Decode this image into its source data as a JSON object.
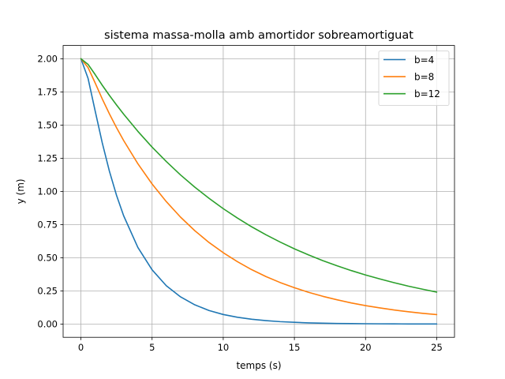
{
  "chart_data": {
    "type": "line",
    "title": "sistema massa-molla amb amortidor sobreamortiguat",
    "xlabel": "temps (s)",
    "ylabel": "y (m)",
    "xlim": [
      -1.25,
      26.25
    ],
    "ylim": [
      -0.1,
      2.1
    ],
    "xticks": [
      0,
      5,
      10,
      15,
      20,
      25
    ],
    "xtick_labels": [
      "0",
      "5",
      "10",
      "15",
      "20",
      "25"
    ],
    "yticks": [
      0,
      0.25,
      0.5,
      0.75,
      1.0,
      1.25,
      1.5,
      1.75,
      2.0
    ],
    "ytick_labels": [
      "0.00",
      "0.25",
      "0.50",
      "0.75",
      "1.00",
      "1.25",
      "1.50",
      "1.75",
      "2.00"
    ],
    "grid": true,
    "legend_position": "top-right",
    "x": [
      0,
      0.5,
      1,
      1.5,
      2,
      2.5,
      3,
      4,
      5,
      6,
      7,
      8,
      9,
      10,
      11,
      12,
      13,
      14,
      15,
      16,
      17,
      18,
      19,
      20,
      21,
      22,
      23,
      24,
      25
    ],
    "series": [
      {
        "name": "b=4",
        "color": "#1f77b4",
        "values": [
          2.0,
          1.853,
          1.607,
          1.366,
          1.153,
          0.971,
          0.817,
          0.578,
          0.409,
          0.289,
          0.205,
          0.145,
          0.102,
          0.072,
          0.051,
          0.036,
          0.026,
          0.018,
          0.013,
          0.009,
          0.0064,
          0.0045,
          0.0032,
          0.0023,
          0.0016,
          0.0011,
          0.0008,
          0.0006,
          0.0004
        ]
      },
      {
        "name": "b=8",
        "color": "#ff7f0e",
        "values": [
          2.0,
          1.934,
          1.818,
          1.697,
          1.585,
          1.481,
          1.384,
          1.209,
          1.056,
          0.923,
          0.806,
          0.704,
          0.615,
          0.538,
          0.47,
          0.41,
          0.358,
          0.313,
          0.274,
          0.239,
          0.209,
          0.183,
          0.159,
          0.139,
          0.122,
          0.106,
          0.093,
          0.081,
          0.071
        ]
      },
      {
        "name": "b=12",
        "color": "#2ca02c",
        "values": [
          2.0,
          1.958,
          1.881,
          1.8,
          1.724,
          1.652,
          1.583,
          1.453,
          1.334,
          1.225,
          1.124,
          1.032,
          0.948,
          0.87,
          0.799,
          0.733,
          0.673,
          0.618,
          0.567,
          0.521,
          0.478,
          0.439,
          0.403,
          0.37,
          0.34,
          0.312,
          0.286,
          0.263,
          0.241
        ]
      }
    ]
  }
}
